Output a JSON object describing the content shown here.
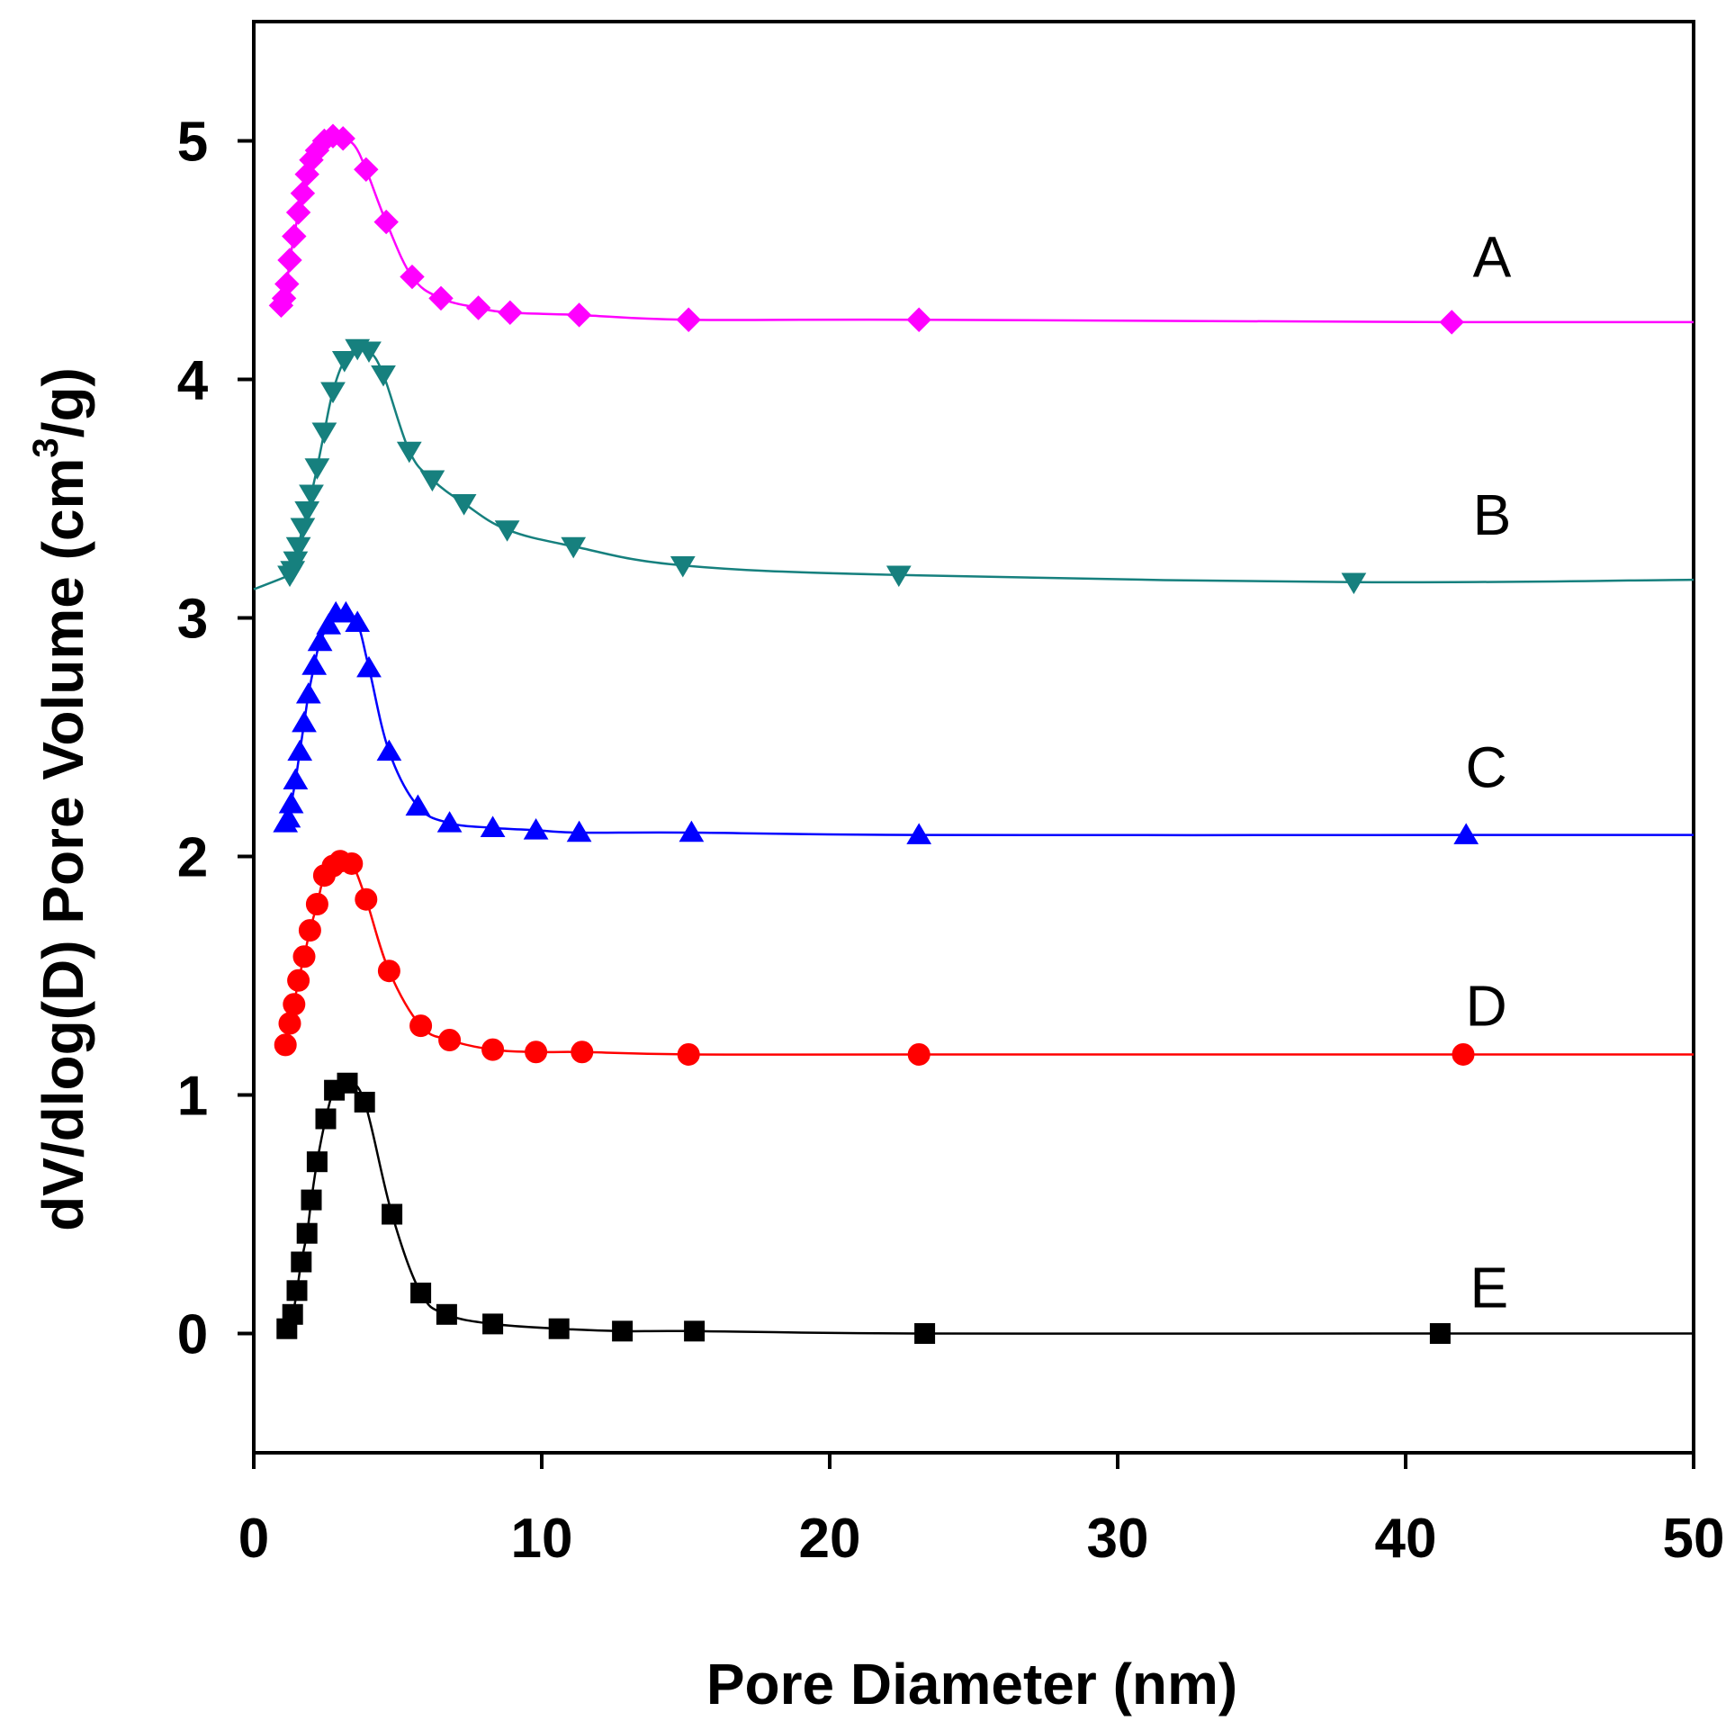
{
  "chart_data": {
    "type": "line",
    "title": "",
    "xlabel": "Pore Diameter (nm)",
    "ylabel_main": "dV/dlog(D) Pore Volume (cm",
    "ylabel_sup": "3",
    "ylabel_tail": "/g)",
    "xlim": [
      0,
      50
    ],
    "ylim": [
      -0.5,
      5.5
    ],
    "xticks": [
      0,
      10,
      20,
      30,
      40,
      50
    ],
    "xtick_labels": [
      "0",
      "10",
      "20",
      "30",
      "40",
      "50"
    ],
    "yticks": [
      0,
      1,
      2,
      3,
      4,
      5
    ],
    "ytick_labels": [
      "0",
      "1",
      "2",
      "3",
      "4",
      "5"
    ],
    "grid": false,
    "series": [
      {
        "name": "A",
        "color": "#ff00ff",
        "marker": "diamond",
        "label_pos": [
          43,
          4.43
        ],
        "x": [
          0.95,
          1.05,
          1.15,
          1.25,
          1.4,
          1.55,
          1.7,
          1.85,
          2.0,
          2.2,
          2.45,
          2.75,
          3.1,
          3.5,
          3.9,
          4.6,
          5.5,
          6.5,
          7.8,
          8.9,
          11.3,
          15.1,
          23.1,
          41.6,
          50
        ],
        "y": [
          4.31,
          4.34,
          4.4,
          4.5,
          4.6,
          4.7,
          4.78,
          4.86,
          4.92,
          4.96,
          5.0,
          5.02,
          5.01,
          4.98,
          4.88,
          4.66,
          4.43,
          4.34,
          4.3,
          4.28,
          4.27,
          4.25,
          4.25,
          4.24,
          4.24
        ],
        "markers": [
          true,
          true,
          true,
          true,
          true,
          true,
          true,
          true,
          true,
          true,
          true,
          true,
          true,
          false,
          true,
          true,
          true,
          true,
          true,
          true,
          true,
          true,
          true,
          true,
          false
        ]
      },
      {
        "name": "B",
        "color": "#16807e",
        "marker": "triangle-down",
        "label_pos": [
          43,
          3.35
        ],
        "x": [
          0,
          1.25,
          1.35,
          1.45,
          1.55,
          1.7,
          1.85,
          2.0,
          2.2,
          2.45,
          2.75,
          3.15,
          3.6,
          4.0,
          4.5,
          5.4,
          6.2,
          7.3,
          8.8,
          11.1,
          14.9,
          22.4,
          38.2,
          50
        ],
        "y": [
          3.12,
          3.18,
          3.2,
          3.24,
          3.3,
          3.38,
          3.45,
          3.52,
          3.63,
          3.78,
          3.95,
          4.08,
          4.13,
          4.12,
          4.02,
          3.7,
          3.58,
          3.48,
          3.37,
          3.3,
          3.22,
          3.18,
          3.15,
          3.16
        ],
        "markers": [
          false,
          true,
          true,
          true,
          true,
          true,
          true,
          true,
          true,
          true,
          true,
          true,
          true,
          true,
          true,
          true,
          true,
          true,
          true,
          true,
          true,
          true,
          true,
          false
        ]
      },
      {
        "name": "C",
        "color": "#0000ff",
        "marker": "triangle-up",
        "label_pos": [
          42.8,
          2.29
        ],
        "x": [
          1.1,
          1.2,
          1.3,
          1.45,
          1.6,
          1.75,
          1.9,
          2.1,
          2.3,
          2.6,
          2.85,
          3.2,
          3.6,
          4.0,
          4.7,
          5.7,
          6.8,
          8.3,
          9.8,
          11.3,
          15.2,
          23.1,
          42.1,
          50
        ],
        "y": [
          2.14,
          2.16,
          2.22,
          2.32,
          2.44,
          2.56,
          2.68,
          2.8,
          2.9,
          2.97,
          3.02,
          3.02,
          2.98,
          2.79,
          2.44,
          2.21,
          2.14,
          2.12,
          2.11,
          2.1,
          2.1,
          2.09,
          2.09,
          2.09
        ],
        "markers": [
          true,
          true,
          true,
          true,
          true,
          true,
          true,
          true,
          true,
          true,
          true,
          true,
          true,
          true,
          true,
          true,
          true,
          true,
          true,
          true,
          true,
          true,
          true,
          false
        ]
      },
      {
        "name": "D",
        "color": "#ff0000",
        "marker": "circle",
        "label_pos": [
          42.8,
          1.29
        ],
        "x": [
          1.1,
          1.25,
          1.4,
          1.55,
          1.75,
          1.95,
          2.2,
          2.45,
          2.75,
          3.0,
          3.4,
          3.9,
          4.7,
          5.8,
          6.8,
          8.3,
          9.8,
          11.4,
          15.1,
          23.1,
          42,
          50
        ],
        "y": [
          1.21,
          1.3,
          1.38,
          1.48,
          1.58,
          1.69,
          1.8,
          1.92,
          1.96,
          1.98,
          1.97,
          1.82,
          1.52,
          1.29,
          1.23,
          1.19,
          1.18,
          1.18,
          1.17,
          1.17,
          1.17,
          1.17
        ],
        "markers": [
          true,
          true,
          true,
          true,
          true,
          true,
          true,
          true,
          true,
          true,
          true,
          true,
          true,
          true,
          true,
          true,
          true,
          true,
          true,
          true,
          true,
          false
        ]
      },
      {
        "name": "E",
        "color": "#000000",
        "marker": "square",
        "label_pos": [
          42.9,
          0.11
        ],
        "x": [
          1.15,
          1.35,
          1.5,
          1.65,
          1.85,
          2.0,
          2.2,
          2.5,
          2.8,
          3.25,
          3.85,
          4.8,
          5.8,
          6.7,
          8.3,
          10.6,
          12.8,
          15.3,
          23.3,
          41.2,
          50
        ],
        "y": [
          0.02,
          0.08,
          0.18,
          0.3,
          0.42,
          0.56,
          0.72,
          0.9,
          1.02,
          1.05,
          0.97,
          0.5,
          0.17,
          0.08,
          0.04,
          0.02,
          0.01,
          0.01,
          0.0,
          0.0,
          0.0
        ],
        "markers": [
          true,
          true,
          true,
          true,
          true,
          true,
          true,
          true,
          true,
          true,
          true,
          true,
          true,
          true,
          true,
          true,
          true,
          true,
          true,
          true,
          false
        ]
      }
    ]
  }
}
